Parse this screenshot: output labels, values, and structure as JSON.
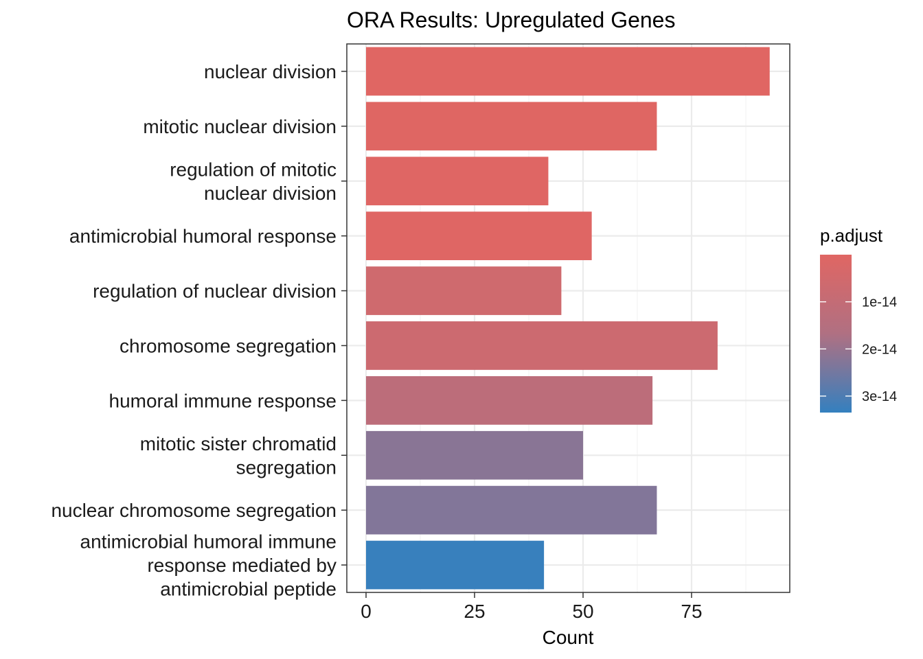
{
  "chart_data": {
    "type": "bar",
    "orientation": "horizontal",
    "title": "ORA Results: Upregulated Genes",
    "xlabel": "Count",
    "ylabel": "",
    "xlim": [
      0,
      97
    ],
    "xticks": [
      0,
      25,
      50,
      75
    ],
    "grid": true,
    "categories": [
      [
        "nuclear division"
      ],
      [
        "mitotic nuclear division"
      ],
      [
        "regulation of mitotic",
        "nuclear division"
      ],
      [
        "antimicrobial humoral response"
      ],
      [
        "regulation of nuclear division"
      ],
      [
        "chromosome segregation"
      ],
      [
        "humoral immune response"
      ],
      [
        "mitotic sister chromatid",
        "segregation"
      ],
      [
        "nuclear chromosome segregation"
      ],
      [
        "antimicrobial humoral immune",
        "response mediated by",
        "antimicrobial peptide"
      ]
    ],
    "values": [
      93,
      67,
      42,
      52,
      45,
      81,
      66,
      50,
      67,
      41
    ],
    "p_adjust": [
      1e-16,
      2e-16,
      3e-16,
      4e-16,
      6e-15,
      7e-15,
      1.25e-14,
      2.2e-14,
      2.3e-14,
      3.3e-14
    ],
    "legend": {
      "title": "p.adjust",
      "placement": "right",
      "ticks": [
        {
          "value": 1e-14,
          "label": "1e-14"
        },
        {
          "value": 2e-14,
          "label": "2e-14"
        },
        {
          "value": 3e-14,
          "label": "3e-14"
        }
      ],
      "range": [
        0,
        3.35e-14
      ],
      "color_low": "#e06663",
      "color_high": "#3480bf"
    }
  }
}
